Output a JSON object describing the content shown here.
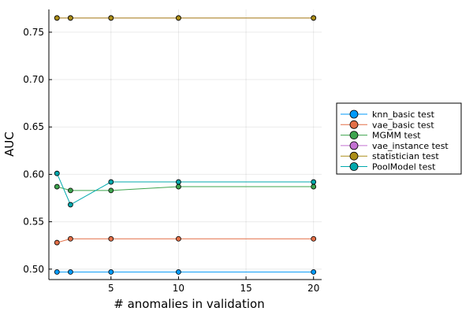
{
  "chart_data": {
    "type": "line",
    "title": "",
    "xlabel": "# anomalies in validation",
    "ylabel": "AUC",
    "xlim": [
      0.4,
      20.6
    ],
    "ylim": [
      0.489,
      0.774
    ],
    "xticks": [
      5,
      10,
      15,
      20
    ],
    "xtick_labels": [
      "5",
      "10",
      "15",
      "20"
    ],
    "yticks": [
      0.5,
      0.55,
      0.6,
      0.65,
      0.7,
      0.75
    ],
    "ytick_labels": [
      "0.50",
      "0.55",
      "0.60",
      "0.65",
      "0.70",
      "0.75"
    ],
    "grid": true,
    "legend_position": "outside-right",
    "x": [
      1,
      2,
      5,
      10,
      20
    ],
    "series": [
      {
        "name": "knn_basic test",
        "color": "#009AFA",
        "values": [
          0.497,
          0.497,
          0.497,
          0.497,
          0.497
        ]
      },
      {
        "name": "vae_basic test",
        "color": "#E36F47",
        "values": [
          0.528,
          0.532,
          0.532,
          0.532,
          0.532
        ]
      },
      {
        "name": "MGMM test",
        "color": "#3EA44E",
        "values": [
          0.587,
          0.583,
          0.583,
          0.587,
          0.587
        ]
      },
      {
        "name": "vae_instance test",
        "color": "#C371D2",
        "values": [
          0.765,
          0.765,
          0.765,
          0.765,
          0.765
        ]
      },
      {
        "name": "statistician test",
        "color": "#AC8E18",
        "values": [
          0.765,
          0.765,
          0.765,
          0.765,
          0.765
        ]
      },
      {
        "name": "PoolModel test",
        "color": "#00A9AD",
        "values": [
          0.601,
          0.568,
          0.592,
          0.592,
          0.592
        ]
      }
    ]
  }
}
